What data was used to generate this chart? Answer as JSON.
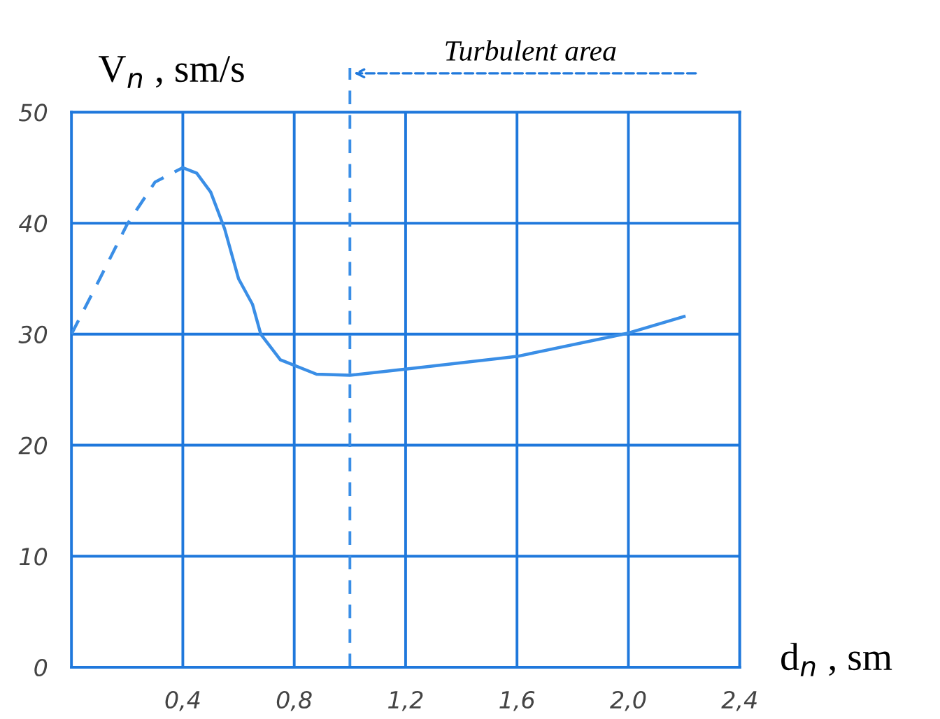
{
  "chart_data": {
    "type": "line",
    "xlabel": "d$_{n}$ , sm",
    "ylabel": "V$_{n}$ , sm/s",
    "xlim": [
      0,
      2.4
    ],
    "ylim": [
      0,
      50
    ],
    "xticks": [
      {
        "value": 0.4,
        "label": "0,4"
      },
      {
        "value": 0.8,
        "label": "0,8"
      },
      {
        "value": 1.2,
        "label": "1,2"
      },
      {
        "value": 1.6,
        "label": "1,6"
      },
      {
        "value": 2.0,
        "label": "2,0"
      },
      {
        "value": 2.4,
        "label": "2,4"
      }
    ],
    "yticks": [
      0,
      10,
      20,
      30,
      40,
      50
    ],
    "grid": true,
    "marker": "none",
    "series": [
      {
        "color": "#3a8ee6",
        "line_style": "dashed",
        "x": [
          0,
          0.1,
          0.2,
          0.3,
          0.4
        ],
        "values": [
          30,
          34.9,
          39.9,
          43.7,
          45
        ]
      },
      {
        "color": "#3a8ee6",
        "line_style": "solid",
        "x": [
          0.4,
          0.45,
          0.5,
          0.55,
          0.6,
          0.65,
          0.68,
          0.75,
          0.88,
          1.0,
          1.25,
          1.6,
          2.0,
          2.2
        ],
        "values": [
          45,
          44.5,
          42.8,
          39.5,
          35,
          32.7,
          30,
          27.7,
          26.4,
          26.3,
          27,
          28,
          30.1,
          31.6
        ]
      }
    ],
    "ref_lines": [
      {
        "axis": "x",
        "value": 1.0,
        "color": "#3a8ee6",
        "line_style": "dashed"
      }
    ],
    "annotations": [
      "Turbulent area"
    ]
  }
}
